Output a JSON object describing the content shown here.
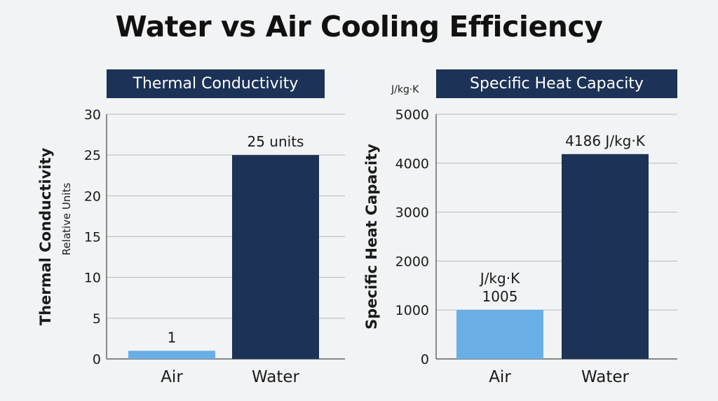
{
  "title": "Water vs Air Cooling Efficiency",
  "colors": {
    "header_bg": "#1c3256",
    "water_bar": "#1c3256",
    "air_bar": "#6aaee6",
    "grid": "#b8b8b8",
    "background": "#f2f3f4"
  },
  "chart_data": [
    {
      "type": "bar",
      "panel_title": "Thermal Conductivity",
      "categories": [
        "Air",
        "Water"
      ],
      "values": [
        1,
        25
      ],
      "data_labels": [
        "1",
        "25 units"
      ],
      "ylabel": "Thermal Conductivity",
      "ylabel_sub": "Relative Units",
      "unit_label": "",
      "ylim": [
        0,
        30
      ],
      "yticks": [
        0,
        5,
        10,
        15,
        20,
        25,
        30
      ],
      "grid": true
    },
    {
      "type": "bar",
      "panel_title": "Specific Heat Capacity",
      "categories": [
        "Air",
        "Water"
      ],
      "values": [
        1005,
        4186
      ],
      "data_labels": [
        "J/kg·K\n1005",
        "4186 J/kg·K"
      ],
      "ylabel": "Specific Heat Capacity",
      "ylabel_sub": "",
      "unit_label": "J/kg·K",
      "ylim": [
        0,
        5000
      ],
      "yticks": [
        0,
        1000,
        2000,
        3000,
        4000,
        5000
      ],
      "grid": true
    }
  ]
}
